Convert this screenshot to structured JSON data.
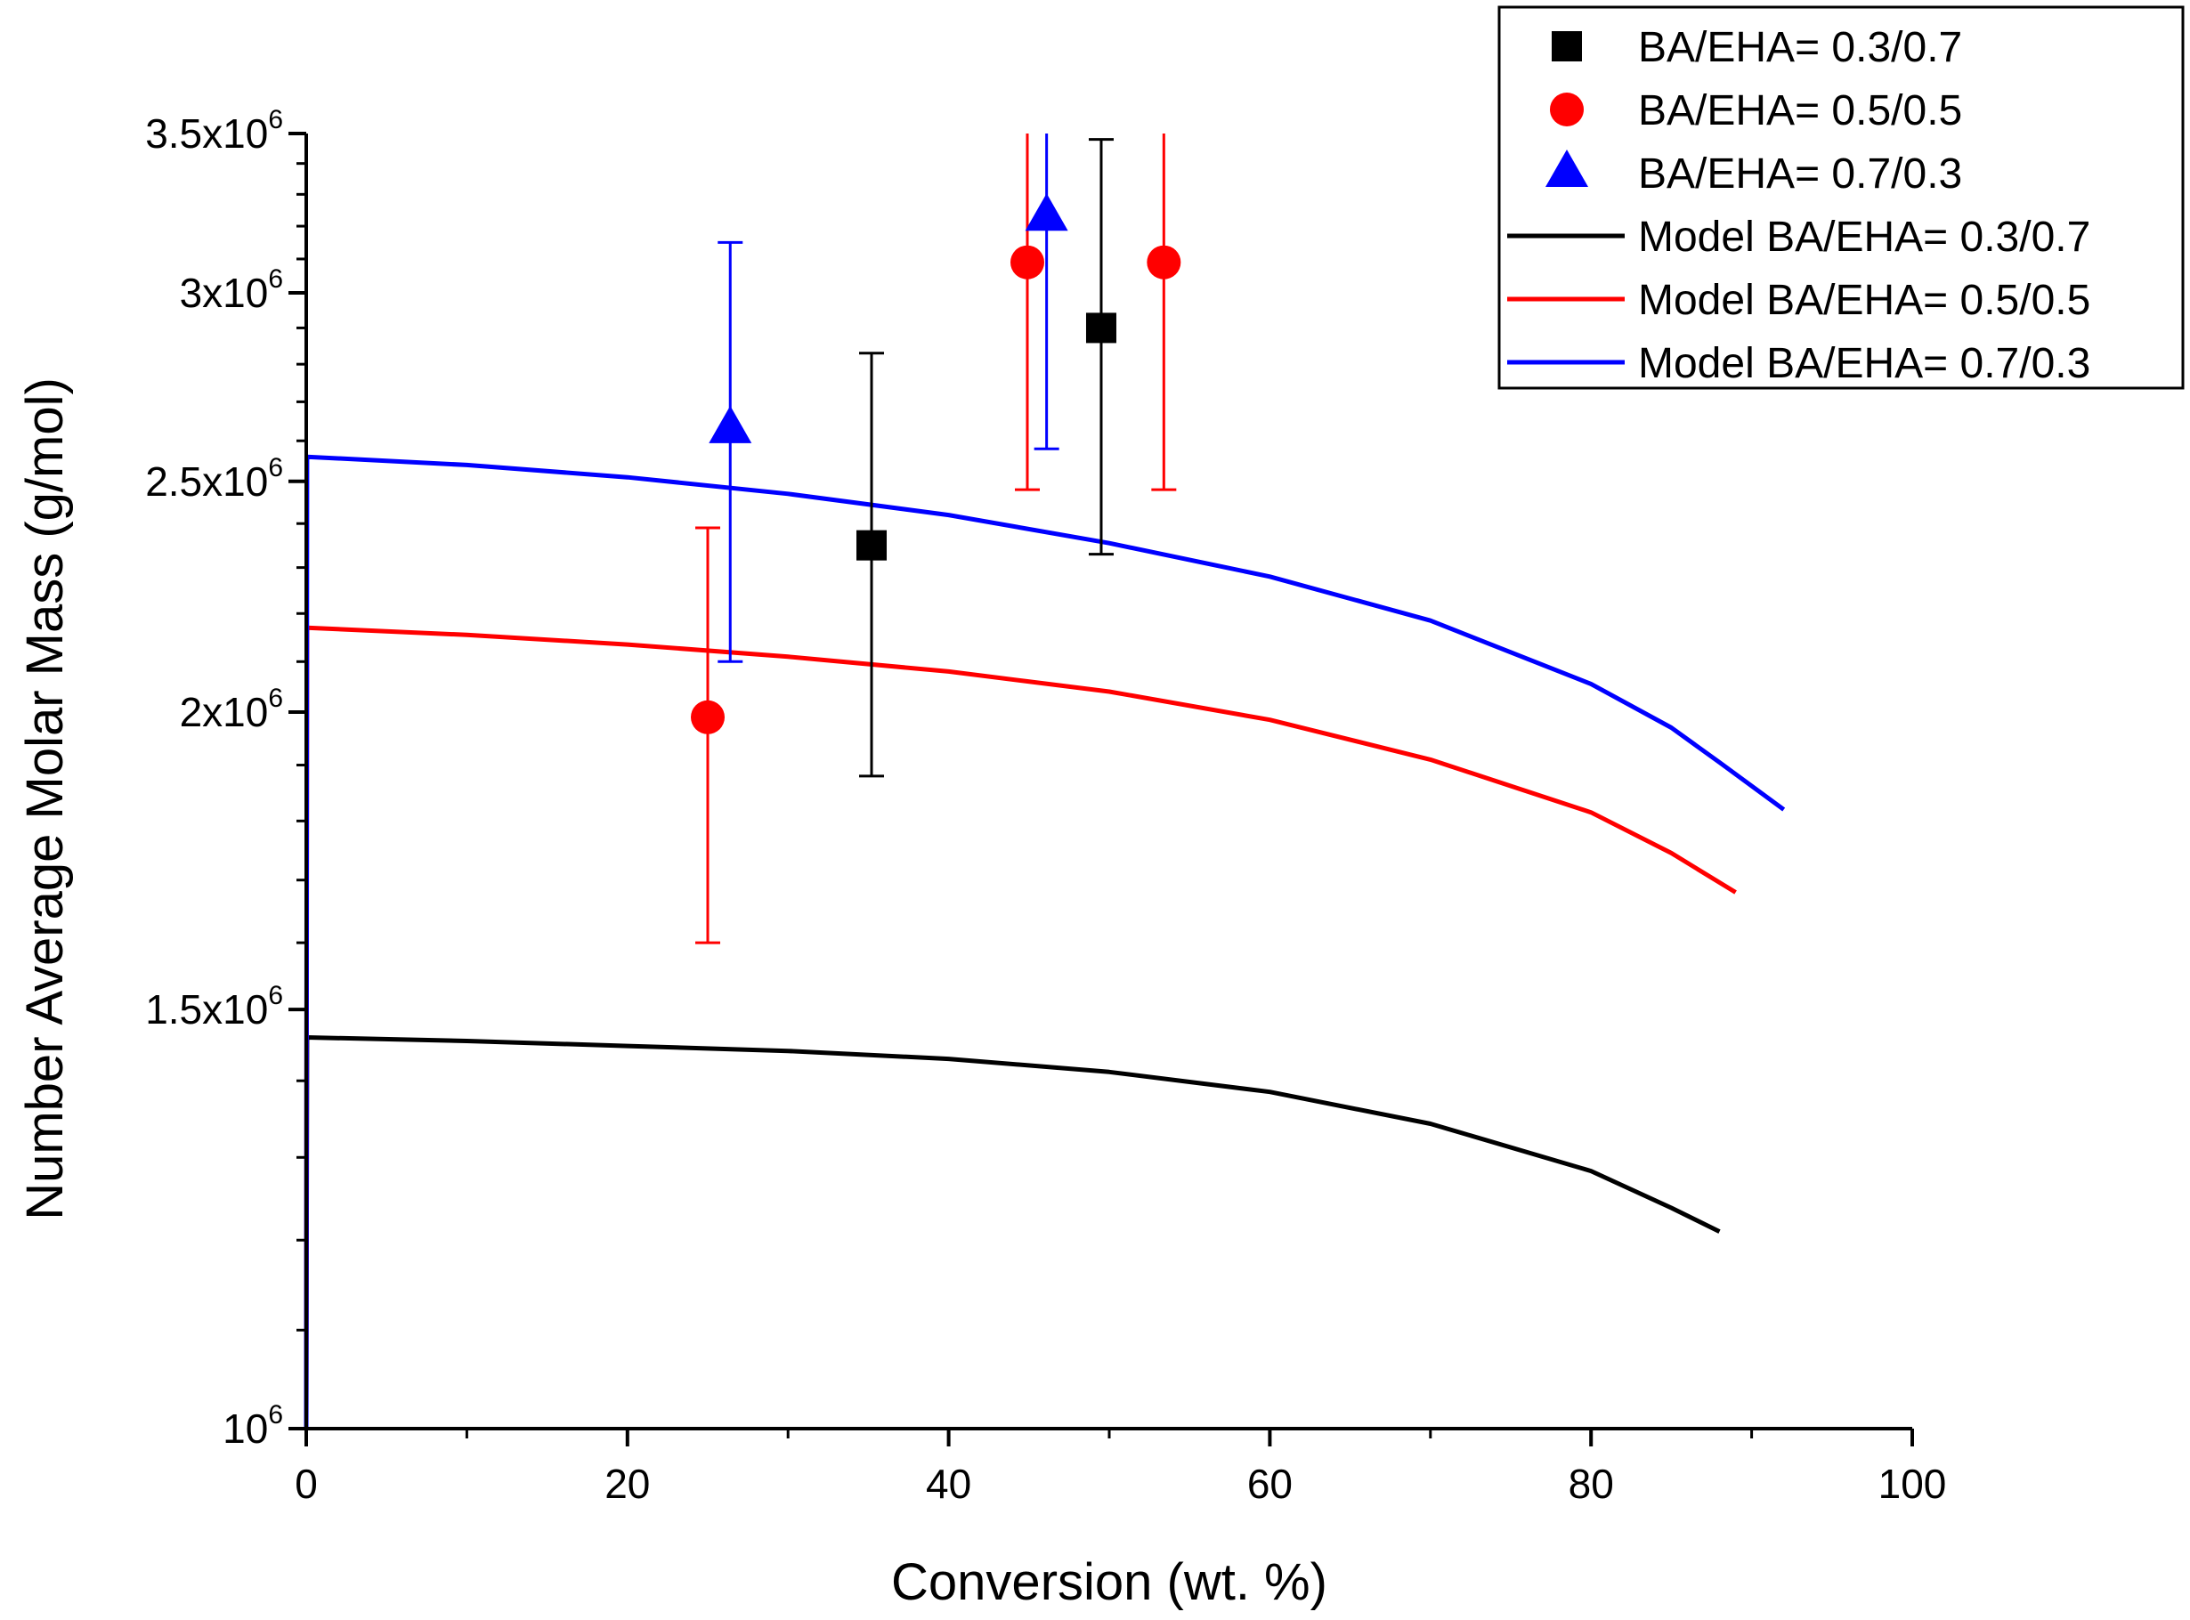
{
  "chart_data": {
    "type": "scatter",
    "xlabel": "Conversion (wt. %)",
    "ylabel": "Number Average Molar Mass (g/mol)",
    "xlim": [
      0,
      100
    ],
    "ylim": [
      1000000,
      3500000
    ],
    "yscale": "log",
    "xticks": [
      0,
      20,
      40,
      60,
      80,
      100
    ],
    "xtick_labels": [
      "0",
      "20",
      "40",
      "60",
      "80",
      "100"
    ],
    "yticks": [
      {
        "value": 1000000,
        "mantissa": "10",
        "exponent": "6"
      },
      {
        "value": 1500000,
        "mantissa": "1.5x10",
        "exponent": "6"
      },
      {
        "value": 2000000,
        "mantissa": "2x10",
        "exponent": "6"
      },
      {
        "value": 2500000,
        "mantissa": "2.5x10",
        "exponent": "6"
      },
      {
        "value": 3000000,
        "mantissa": "3x10",
        "exponent": "6"
      },
      {
        "value": 3500000,
        "mantissa": "3.5x10",
        "exponent": "6"
      }
    ],
    "legend_position": "top-right",
    "series": [
      {
        "name": "BA/EHA= 0.3/0.7",
        "kind": "scatter",
        "marker": "square",
        "color": "#000000",
        "points": [
          {
            "x": 35.2,
            "y": 2350000,
            "err_low": 1880000,
            "err_high": 2830000
          },
          {
            "x": 49.5,
            "y": 2900000,
            "err_low": 2330000,
            "err_high": 3480000
          }
        ]
      },
      {
        "name": "BA/EHA= 0.5/0.5",
        "kind": "scatter",
        "marker": "circle",
        "color": "#ff0000",
        "points": [
          {
            "x": 25.0,
            "y": 1990000,
            "err_low": 1600000,
            "err_high": 2390000
          },
          {
            "x": 44.9,
            "y": 3090000,
            "err_low": 2480000,
            "err_high": 3500000
          },
          {
            "x": 53.4,
            "y": 3090000,
            "err_low": 2480000,
            "err_high": 3500000
          }
        ]
      },
      {
        "name": "BA/EHA= 0.7/0.3",
        "kind": "scatter",
        "marker": "triangle",
        "color": "#0000ff",
        "points": [
          {
            "x": 26.4,
            "y": 2630000,
            "err_low": 2100000,
            "err_high": 3150000
          },
          {
            "x": 46.1,
            "y": 3230000,
            "err_low": 2580000,
            "err_high": 3500000
          }
        ]
      },
      {
        "name": "Model BA/EHA= 0.3/0.7",
        "kind": "line",
        "color": "#000000",
        "x": [
          0,
          0.05,
          10,
          20,
          30,
          40,
          50,
          60,
          70,
          80,
          85,
          88
        ],
        "y": [
          1000000,
          1460000,
          1455000,
          1448000,
          1441000,
          1430000,
          1412000,
          1385000,
          1343000,
          1283000,
          1238000,
          1210000
        ]
      },
      {
        "name": "Model BA/EHA= 0.5/0.5",
        "kind": "line",
        "color": "#ff0000",
        "x": [
          0,
          0.05,
          10,
          20,
          30,
          40,
          50,
          60,
          70,
          80,
          85,
          89
        ],
        "y": [
          1000000,
          2170000,
          2155000,
          2135000,
          2110000,
          2080000,
          2040000,
          1985000,
          1910000,
          1815000,
          1745000,
          1680000
        ]
      },
      {
        "name": "Model BA/EHA= 0.7/0.3",
        "kind": "line",
        "color": "#0000ff",
        "x": [
          0,
          0.05,
          10,
          20,
          30,
          40,
          50,
          60,
          70,
          80,
          85,
          88,
          92
        ],
        "y": [
          1000000,
          2560000,
          2540000,
          2510000,
          2470000,
          2420000,
          2355000,
          2280000,
          2185000,
          2055000,
          1970000,
          1905000,
          1820000
        ]
      }
    ]
  }
}
